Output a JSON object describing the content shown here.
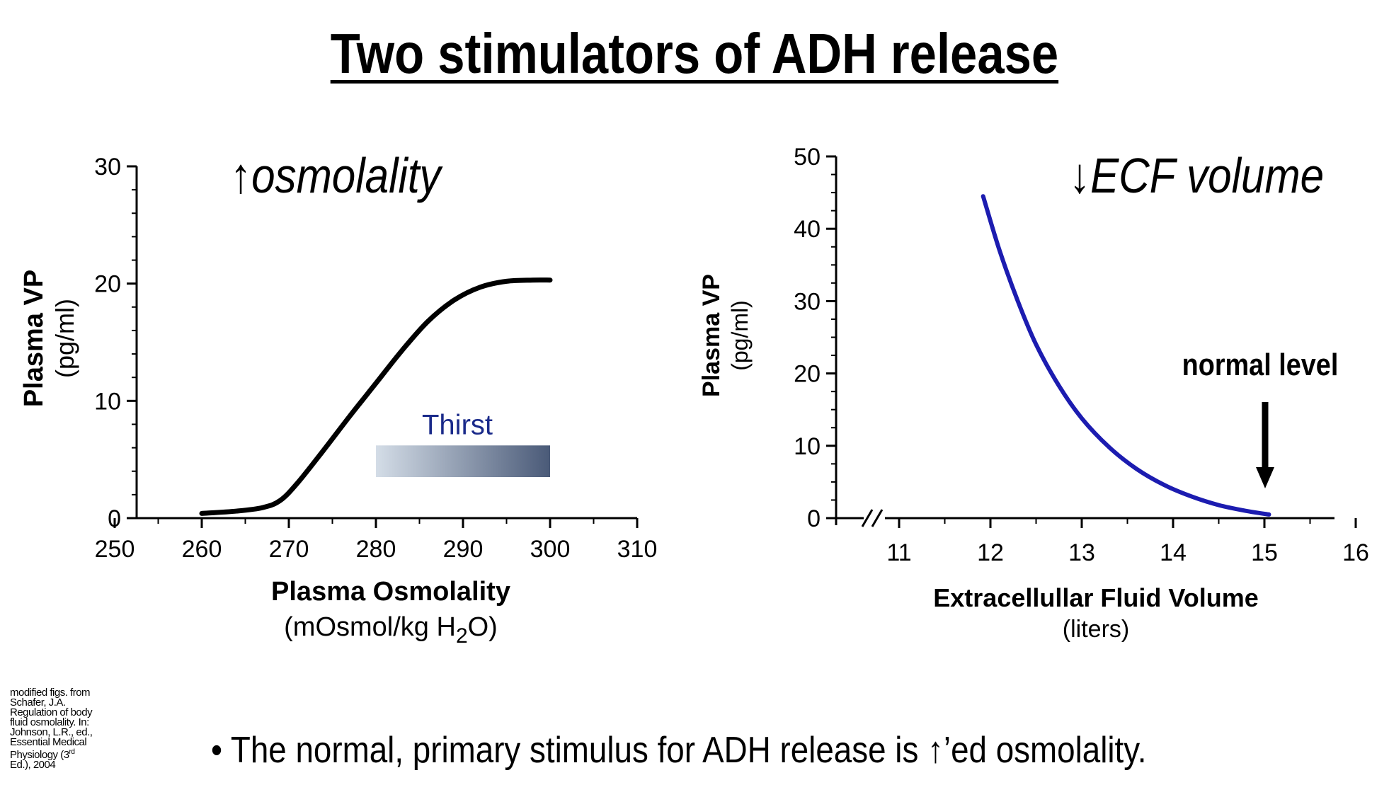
{
  "title": "Two stimulators of ADH release",
  "chart_data": [
    {
      "type": "line",
      "annotation_title": "↑osmolality",
      "ylabel": "Plasma VP",
      "ylabel_units": "(pg/ml)",
      "xlabel": "Plasma Osmolality",
      "xlabel_units_pre": "(mOsmol/kg H",
      "xlabel_units_sub": "2",
      "xlabel_units_post": "O)",
      "xlim": [
        250,
        310
      ],
      "ylim": [
        0,
        30
      ],
      "x_ticks": [
        "250",
        "260",
        "270",
        "280",
        "290",
        "300",
        "310"
      ],
      "y_ticks": [
        "0",
        "10",
        "20",
        "30"
      ],
      "series": [
        {
          "x": [
            260,
            264,
            267,
            269,
            271,
            274,
            277,
            280,
            283,
            286,
            289,
            292,
            295,
            298,
            300
          ],
          "y": [
            0.4,
            0.6,
            0.9,
            1.5,
            3.0,
            5.8,
            8.7,
            11.5,
            14.3,
            16.8,
            18.6,
            19.7,
            20.2,
            20.3,
            20.3
          ]
        }
      ],
      "thirst_label": "Thirst",
      "thirst_band": {
        "x_start": 280,
        "x_end": 300,
        "y_low": 3.5,
        "y_high": 6.2
      },
      "colors": {
        "line": "#000000",
        "thirst_text": "#1a2a8a",
        "band_light": "#d4dde7",
        "band_dark": "#4a5a78"
      }
    },
    {
      "type": "line",
      "annotation_title": "↓ECF volume",
      "ylabel": "Plasma VP",
      "ylabel_units": "(pg/ml)",
      "xlabel": "Extracellullar Fluid Volume",
      "xlabel_units": "(liters)",
      "xlim": [
        10,
        16
      ],
      "ylim": [
        0,
        50
      ],
      "x_ticks": [
        "11",
        "12",
        "13",
        "14",
        "15",
        "16"
      ],
      "y_ticks": [
        "0",
        "10",
        "20",
        "30",
        "40",
        "50"
      ],
      "series": [
        {
          "x": [
            11.92,
            12.1,
            12.3,
            12.5,
            12.75,
            13.0,
            13.3,
            13.6,
            13.9,
            14.2,
            14.5,
            14.8,
            15.05
          ],
          "y": [
            44.5,
            37.0,
            30.0,
            24.0,
            18.3,
            13.8,
            9.8,
            6.8,
            4.6,
            3.0,
            1.8,
            1.0,
            0.5
          ]
        }
      ],
      "annotation": "normal level",
      "arrow_at_x": 15,
      "colors": {
        "line": "#1c1cb0"
      }
    }
  ],
  "credit_lines": [
    "modified figs. from",
    "Schafer, J.A.",
    "Regulation of body",
    "fluid osmolality. In:",
    "Johnson, L.R., ed.,",
    "Essential Medical",
    "Physiology (3",
    "rd",
    "Ed.), 2004"
  ],
  "bullet_text": "• The normal, primary stimulus for ADH release is ↑’ed osmolality."
}
